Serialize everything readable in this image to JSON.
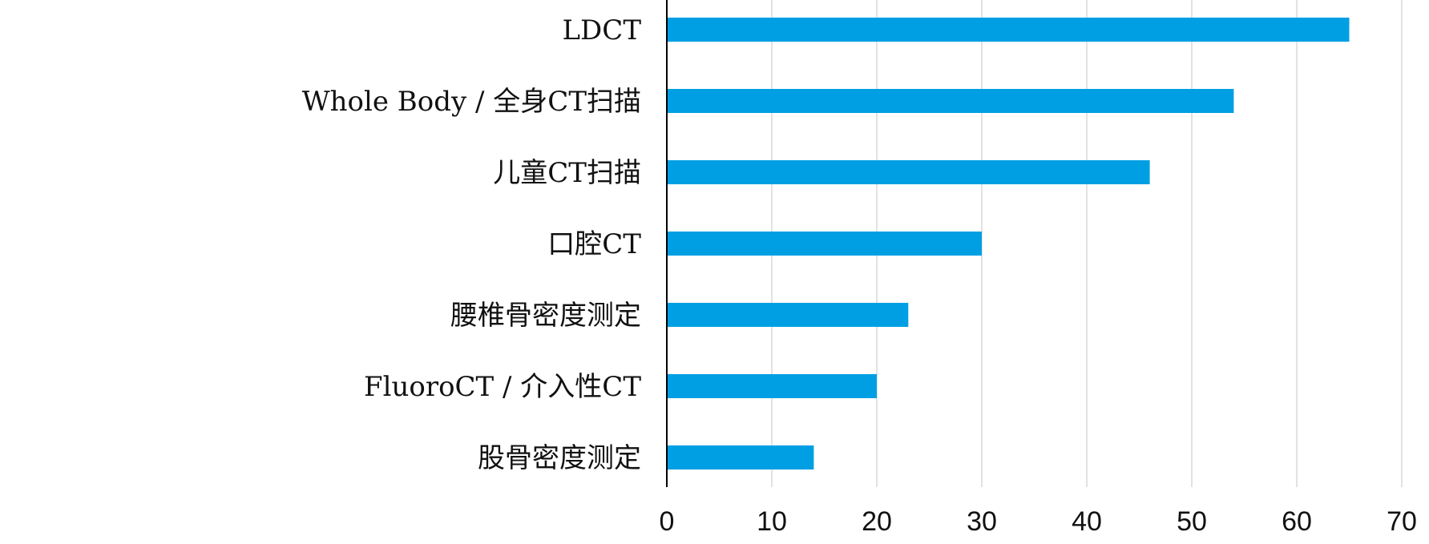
{
  "chart_data": {
    "type": "bar",
    "orientation": "horizontal",
    "categories": [
      "LDCT",
      "Whole Body / 全身CT扫描",
      "儿童CT扫描",
      "口腔CT",
      "腰椎骨密度测定",
      "FluoroCT / 介入性CT",
      "股骨密度测定"
    ],
    "values": [
      65,
      54,
      46,
      30,
      23,
      20,
      14
    ],
    "xlim": [
      0,
      70
    ],
    "xticks": [
      "0",
      "10",
      "20",
      "30",
      "40",
      "50",
      "60",
      "70"
    ],
    "grid": true,
    "bar_color": "#009FE3",
    "grid_color": "#D9D9D9",
    "axis_color": "#000000",
    "title": "",
    "xlabel": "",
    "ylabel": ""
  }
}
